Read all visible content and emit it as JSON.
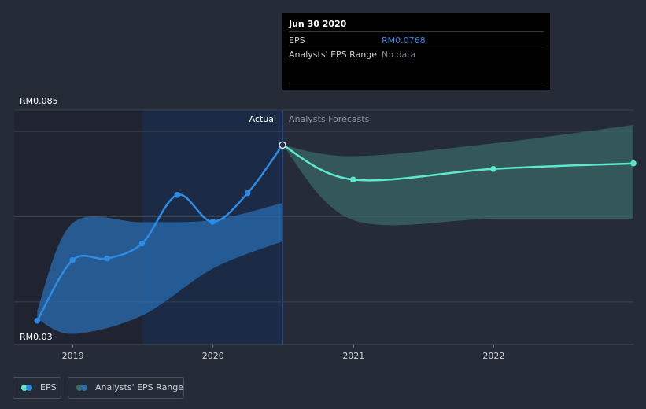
{
  "chart_data": {
    "type": "line",
    "title": "",
    "xlabel": "",
    "ylabel": "",
    "y_tick_labels": [
      "RM0.085",
      "RM0.03"
    ],
    "ylim": [
      0.03,
      0.085
    ],
    "x_tick_labels": [
      "2019",
      "2020",
      "2021",
      "2022"
    ],
    "xlim": [
      "2018-08-01",
      "2022-12-31"
    ],
    "divider_date": "2020-06-30",
    "region_labels": {
      "actual": "Actual",
      "forecast": "Analysts Forecasts"
    },
    "series": [
      {
        "name": "EPS",
        "color": "#2d8ce6",
        "points": [
          {
            "x": "2018-09-30",
            "y": 0.0356
          },
          {
            "x": "2018-12-31",
            "y": 0.0498
          },
          {
            "x": "2019-03-31",
            "y": 0.0502
          },
          {
            "x": "2019-06-30",
            "y": 0.0537
          },
          {
            "x": "2019-09-30",
            "y": 0.0651
          },
          {
            "x": "2019-12-31",
            "y": 0.0588
          },
          {
            "x": "2020-03-31",
            "y": 0.0655
          },
          {
            "x": "2020-06-30",
            "y": 0.0768
          }
        ]
      },
      {
        "name": "EPS Forecast",
        "color": "#5de8d0",
        "points": [
          {
            "x": "2020-06-30",
            "y": 0.0768
          },
          {
            "x": "2020-12-31",
            "y": 0.0687
          },
          {
            "x": "2021-12-31",
            "y": 0.0712
          },
          {
            "x": "2022-12-31",
            "y": 0.0725
          }
        ]
      }
    ],
    "bands": [
      {
        "name": "Analysts' EPS Range",
        "region": "actual",
        "color": "#2a6cb0",
        "upper": [
          {
            "x": "2018-09-30",
            "y": 0.038
          },
          {
            "x": "2018-12-31",
            "y": 0.0585
          },
          {
            "x": "2019-06-30",
            "y": 0.0587
          },
          {
            "x": "2019-12-31",
            "y": 0.0592
          },
          {
            "x": "2020-06-30",
            "y": 0.0632
          }
        ],
        "lower": [
          {
            "x": "2018-09-30",
            "y": 0.036
          },
          {
            "x": "2018-12-31",
            "y": 0.0325
          },
          {
            "x": "2019-06-30",
            "y": 0.0368
          },
          {
            "x": "2019-12-31",
            "y": 0.0478
          },
          {
            "x": "2020-06-30",
            "y": 0.0542
          }
        ]
      },
      {
        "name": "Analysts' EPS Range",
        "region": "forecast",
        "color": "#3b6b6a",
        "upper": [
          {
            "x": "2020-06-30",
            "y": 0.0768
          },
          {
            "x": "2020-12-31",
            "y": 0.0742
          },
          {
            "x": "2021-12-31",
            "y": 0.0772
          },
          {
            "x": "2022-12-31",
            "y": 0.0815
          }
        ],
        "lower": [
          {
            "x": "2020-06-30",
            "y": 0.0768
          },
          {
            "x": "2020-12-31",
            "y": 0.0592
          },
          {
            "x": "2021-12-31",
            "y": 0.0595
          },
          {
            "x": "2022-12-31",
            "y": 0.0595
          }
        ]
      }
    ],
    "grid": true,
    "legend_position": "bottom-left"
  },
  "tooltip": {
    "date": "Jun 30 2020",
    "rows": [
      {
        "label": "EPS",
        "value": "RM0.0768",
        "value_color": "#2d8ce6"
      },
      {
        "label": "Analysts' EPS Range",
        "value": "No data",
        "value_color": "#7d838f"
      }
    ]
  },
  "legend": [
    {
      "label": "EPS",
      "colors": [
        "#5de8d0",
        "#2d8ce6"
      ]
    },
    {
      "label": "Analysts' EPS Range",
      "colors": [
        "#3b6b6a",
        "#2a6cb0"
      ]
    }
  ]
}
